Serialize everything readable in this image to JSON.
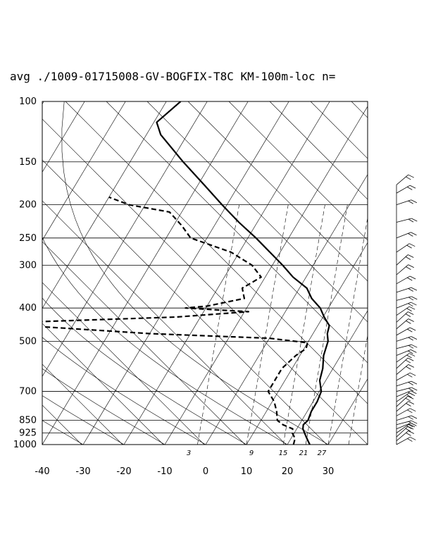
{
  "chart_data": {
    "type": "line",
    "title": "avg ./1009-01715008-GV-BOGFIX-T8C KM-100m-loc n=",
    "xlabel": "",
    "ylabel": "",
    "y_scale": "log",
    "xlim": [
      -40,
      40
    ],
    "ylim": [
      1000,
      100
    ],
    "x_ticks": [
      -40,
      -30,
      -20,
      -10,
      0,
      10,
      20,
      30
    ],
    "p_ticks": [
      100,
      150,
      200,
      250,
      300,
      400,
      500,
      700,
      850,
      925,
      1000
    ],
    "grid": true,
    "background_lines": {
      "isotherm_skew_labels": true,
      "dry_adiabats": true,
      "moist_adiabats": true,
      "mixing_ratio_lines": true
    },
    "mixing_ratio_labels": [
      "3",
      "9",
      "15",
      "21",
      "27"
    ],
    "series": [
      {
        "style": "solid",
        "points": [
          [
            1000,
            25.5
          ],
          [
            975,
            24.5
          ],
          [
            950,
            23.5
          ],
          [
            925,
            22.5
          ],
          [
            900,
            21.5
          ],
          [
            875,
            21.0
          ],
          [
            850,
            21.5
          ],
          [
            800,
            21.0
          ],
          [
            750,
            21.0
          ],
          [
            700,
            20.5
          ],
          [
            650,
            18.5
          ],
          [
            600,
            17.5
          ],
          [
            550,
            15.8
          ],
          [
            500,
            14.8
          ],
          [
            475,
            13.5
          ],
          [
            450,
            12.8
          ],
          [
            425,
            10.3
          ],
          [
            400,
            8.0
          ],
          [
            375,
            4.5
          ],
          [
            350,
            1.8
          ],
          [
            325,
            -3.2
          ],
          [
            300,
            -7.5
          ],
          [
            275,
            -12.5
          ],
          [
            250,
            -18.0
          ],
          [
            225,
            -24.5
          ],
          [
            200,
            -31.2
          ],
          [
            175,
            -38.5
          ],
          [
            150,
            -47.0
          ],
          [
            125,
            -56.5
          ],
          [
            115,
            -59.3
          ],
          [
            100,
            -56.5
          ]
        ]
      },
      {
        "style": "dashed",
        "points": [
          [
            1000,
            21.5
          ],
          [
            960,
            21.0
          ],
          [
            925,
            19.5
          ],
          [
            900,
            19.0
          ],
          [
            875,
            16.0
          ],
          [
            850,
            14.0
          ],
          [
            800,
            12.5
          ],
          [
            750,
            10.5
          ],
          [
            700,
            7.5
          ],
          [
            650,
            7.5
          ],
          [
            600,
            7.5
          ],
          [
            550,
            9.0
          ],
          [
            525,
            10.5
          ],
          [
            505,
            10.0
          ],
          [
            490,
            0.0
          ],
          [
            475,
            -30.0
          ],
          [
            450,
            -62.0
          ],
          [
            440,
            -63.0
          ],
          [
            425,
            -26.0
          ],
          [
            410,
            -9.0
          ],
          [
            400,
            -25.0
          ],
          [
            395,
            -20.0
          ],
          [
            375,
            -12.0
          ],
          [
            350,
            -14.0
          ],
          [
            325,
            -11.0
          ],
          [
            300,
            -15.0
          ],
          [
            275,
            -22.0
          ],
          [
            250,
            -34.0
          ],
          [
            230,
            -38.0
          ],
          [
            210,
            -43.0
          ],
          [
            200,
            -54.0
          ],
          [
            190,
            -60.0
          ]
        ]
      }
    ],
    "wind_barbs": {
      "pressure_levels": [
        1000,
        975,
        950,
        925,
        900,
        875,
        850,
        825,
        800,
        775,
        750,
        725,
        700,
        675,
        650,
        625,
        600,
        575,
        550,
        525,
        500,
        480,
        460,
        440,
        420,
        400,
        380,
        360,
        340,
        320,
        300,
        275,
        250,
        225,
        200,
        185,
        175
      ]
    }
  }
}
